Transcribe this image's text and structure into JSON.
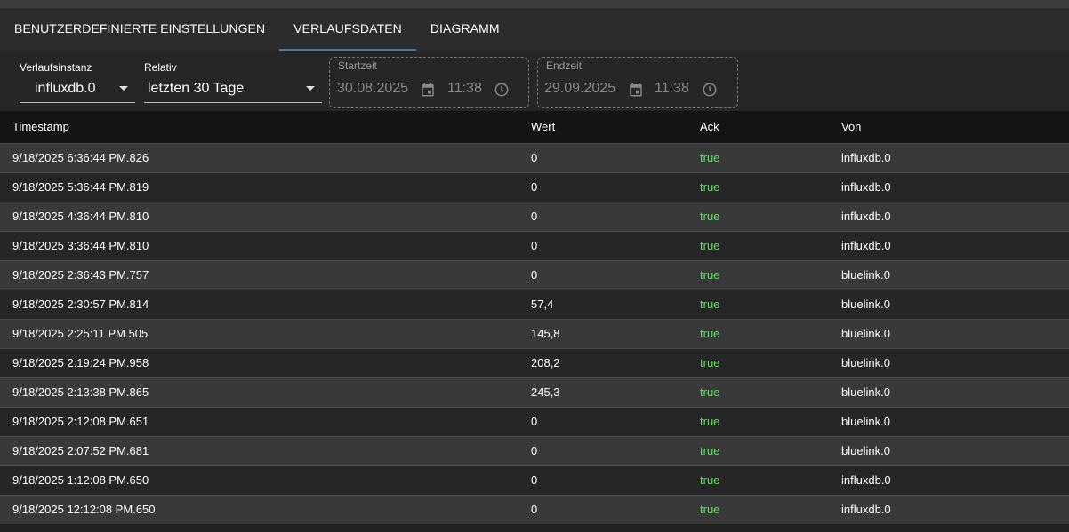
{
  "tabs": [
    {
      "label": "BENUTZERDEFINIERTE EINSTELLUNGEN"
    },
    {
      "label": "VERLAUFSDATEN",
      "active": true
    },
    {
      "label": "DIAGRAMM"
    }
  ],
  "toolbar": {
    "instance": {
      "label": "Verlaufsinstanz",
      "value": "influxdb.0"
    },
    "relative": {
      "label": "Relativ",
      "value": "letzten 30 Tage"
    },
    "start": {
      "label": "Startzeit",
      "date": "30.08.2025",
      "time": "11:38"
    },
    "end": {
      "label": "Endzeit",
      "date": "29.09.2025",
      "time": "11:38"
    }
  },
  "table": {
    "columns": [
      "Timestamp",
      "Wert",
      "Ack",
      "Von"
    ],
    "rows": [
      [
        "9/18/2025 6:36:44 PM.826",
        "0",
        "true",
        "influxdb.0"
      ],
      [
        "9/18/2025 5:36:44 PM.819",
        "0",
        "true",
        "influxdb.0"
      ],
      [
        "9/18/2025 4:36:44 PM.810",
        "0",
        "true",
        "influxdb.0"
      ],
      [
        "9/18/2025 3:36:44 PM.810",
        "0",
        "true",
        "influxdb.0"
      ],
      [
        "9/18/2025 2:36:43 PM.757",
        "0",
        "true",
        "bluelink.0"
      ],
      [
        "9/18/2025 2:30:57 PM.814",
        "57,4",
        "true",
        "bluelink.0"
      ],
      [
        "9/18/2025 2:25:11 PM.505",
        "145,8",
        "true",
        "bluelink.0"
      ],
      [
        "9/18/2025 2:19:24 PM.958",
        "208,2",
        "true",
        "bluelink.0"
      ],
      [
        "9/18/2025 2:13:38 PM.865",
        "245,3",
        "true",
        "bluelink.0"
      ],
      [
        "9/18/2025 2:12:08 PM.651",
        "0",
        "true",
        "bluelink.0"
      ],
      [
        "9/18/2025 2:07:52 PM.681",
        "0",
        "true",
        "bluelink.0"
      ],
      [
        "9/18/2025 1:12:08 PM.650",
        "0",
        "true",
        "influxdb.0"
      ],
      [
        "9/18/2025 12:12:08 PM.650",
        "0",
        "true",
        "influxdb.0"
      ]
    ]
  },
  "colors": {
    "accent": "#4a78a8",
    "ack_true": "#5fe05f"
  }
}
